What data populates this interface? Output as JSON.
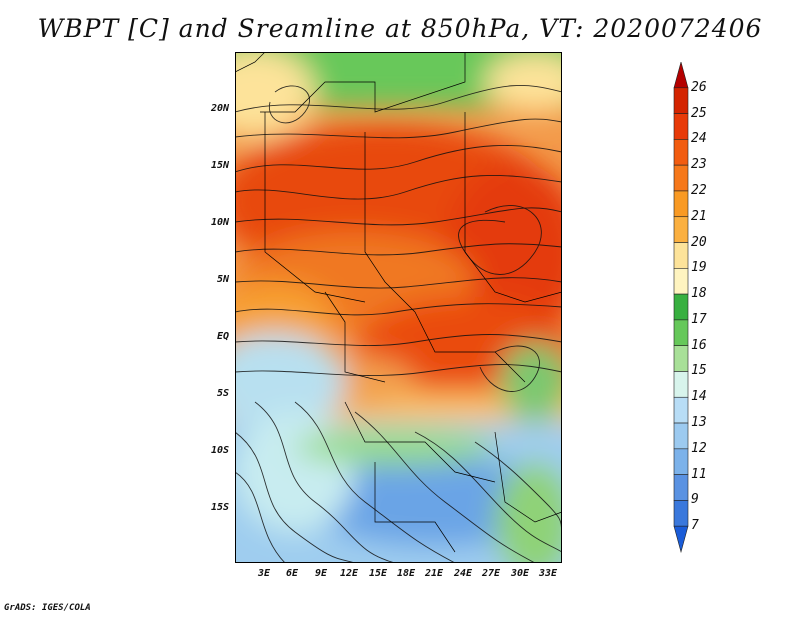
{
  "title": "WBPT [C] and Sreamline at 850hPa, VT: 2020072406",
  "credit": "GrADS: IGES/COLA",
  "map": {
    "lat_ticks": [
      "20N",
      "15N",
      "10N",
      "5N",
      "EQ",
      "5S",
      "10S",
      "15S"
    ],
    "lon_ticks": [
      "3E",
      "6E",
      "9E",
      "12E",
      "15E",
      "18E",
      "21E",
      "24E",
      "27E",
      "30E",
      "33E"
    ]
  },
  "colorbar": {
    "labels": [
      "26",
      "25",
      "24",
      "23",
      "22",
      "21",
      "20",
      "19",
      "18",
      "17",
      "16",
      "15",
      "14",
      "13",
      "12",
      "11",
      "9",
      "7"
    ],
    "colors": [
      "#b40000",
      "#d42400",
      "#e83a08",
      "#f25c10",
      "#f6781a",
      "#f99a24",
      "#fbb040",
      "#fde39a",
      "#fff4c0",
      "#38b040",
      "#66c85a",
      "#a8e098",
      "#d8f4ec",
      "#b8ddf6",
      "#9ccaf0",
      "#7cb2ea",
      "#5a92e2",
      "#3a78dc",
      "#1a5cd8"
    ]
  }
}
